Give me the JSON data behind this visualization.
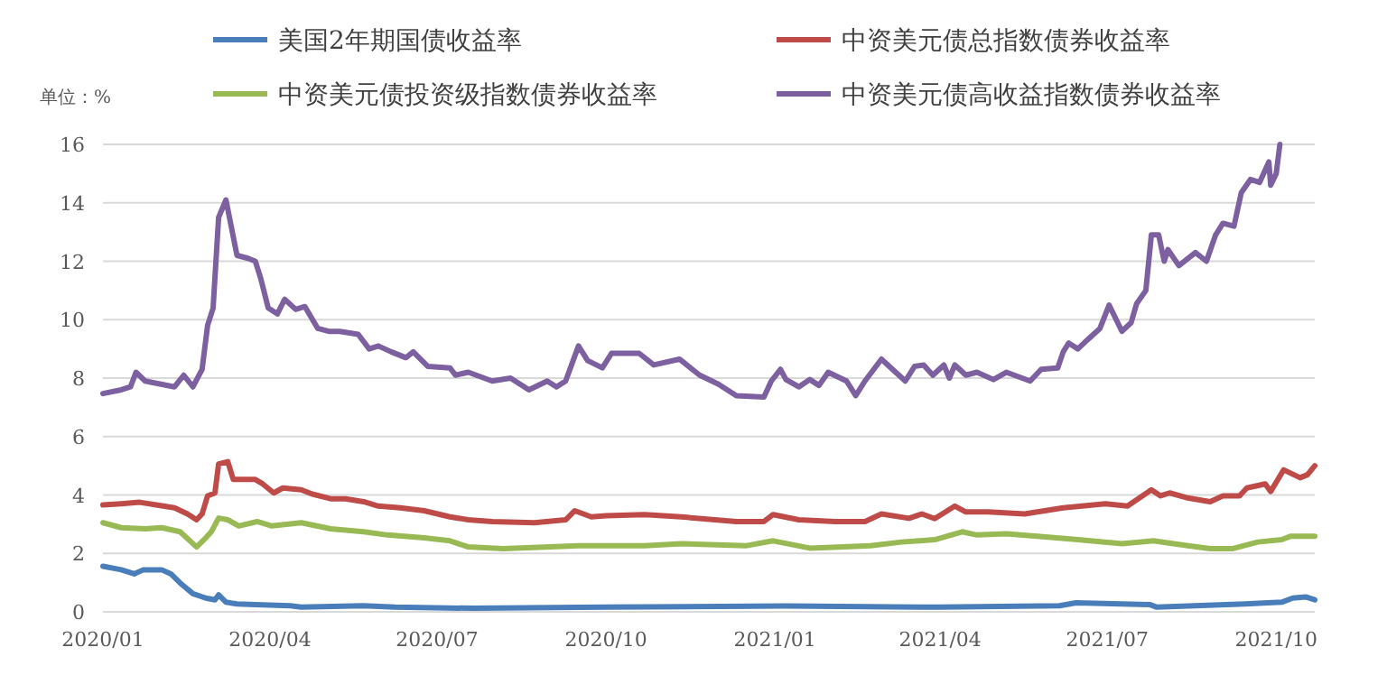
{
  "chart_data": {
    "type": "line",
    "ylabel": "单位：%",
    "legend": "top",
    "grid": "y",
    "xlim": [
      "2020-01-01",
      "2021-10-22"
    ],
    "ylim": [
      0,
      16
    ],
    "yticks": [
      0,
      2,
      4,
      6,
      8,
      10,
      12,
      14,
      16
    ],
    "xticks": [
      {
        "value": "2020-01-01",
        "label": "2020/01"
      },
      {
        "value": "2020-04-01",
        "label": "2020/04"
      },
      {
        "value": "2020-07-01",
        "label": "2020/07"
      },
      {
        "value": "2020-10-01",
        "label": "2020/10"
      },
      {
        "value": "2021-01-01",
        "label": "2021/01"
      },
      {
        "value": "2021-04-01",
        "label": "2021/04"
      },
      {
        "value": "2021-07-01",
        "label": "2021/07"
      },
      {
        "value": "2021-10-01",
        "label": "2021/10"
      }
    ],
    "series": [
      {
        "name": "美国2年期国债收益率",
        "color": "#4a7ebb",
        "x": [
          "2020-01-01",
          "2020-01-11",
          "2020-01-18",
          "2020-01-23",
          "2020-02-02",
          "2020-02-07",
          "2020-02-12",
          "2020-02-19",
          "2020-02-26",
          "2020-03-02",
          "2020-03-04",
          "2020-03-08",
          "2020-03-14",
          "2020-03-24",
          "2020-04-12",
          "2020-04-18",
          "2020-05-22",
          "2020-06-08",
          "2020-07-21",
          "2020-10-01",
          "2021-01-07",
          "2021-04-01",
          "2021-06-05",
          "2021-06-14",
          "2021-07-24",
          "2021-07-28",
          "2021-09-14",
          "2021-10-04",
          "2021-10-10",
          "2021-10-17",
          "2021-10-22"
        ],
        "values": [
          1.56,
          1.44,
          1.3,
          1.44,
          1.44,
          1.3,
          0.99,
          0.62,
          0.47,
          0.41,
          0.58,
          0.33,
          0.27,
          0.25,
          0.21,
          0.16,
          0.21,
          0.16,
          0.12,
          0.16,
          0.2,
          0.16,
          0.21,
          0.31,
          0.25,
          0.16,
          0.27,
          0.33,
          0.47,
          0.51,
          0.41
        ]
      },
      {
        "name": "中资美元债总指数债券收益率",
        "color": "#be4b48",
        "x": [
          "2020-01-01",
          "2020-01-11",
          "2020-01-21",
          "2020-01-30",
          "2020-02-09",
          "2020-02-16",
          "2020-02-21",
          "2020-02-24",
          "2020-02-27",
          "2020-03-02",
          "2020-03-04",
          "2020-03-09",
          "2020-03-12",
          "2020-03-24",
          "2020-03-28",
          "2020-04-03",
          "2020-04-08",
          "2020-04-18",
          "2020-04-24",
          "2020-05-04",
          "2020-05-12",
          "2020-05-22",
          "2020-05-30",
          "2020-06-11",
          "2020-06-24",
          "2020-07-08",
          "2020-07-18",
          "2020-07-31",
          "2020-08-23",
          "2020-09-09",
          "2020-09-14",
          "2020-09-23",
          "2020-10-01",
          "2020-10-22",
          "2020-11-11",
          "2020-12-11",
          "2020-12-26",
          "2020-12-31",
          "2021-01-14",
          "2021-02-03",
          "2021-02-19",
          "2021-02-28",
          "2021-03-15",
          "2021-03-22",
          "2021-03-29",
          "2021-04-09",
          "2021-04-15",
          "2021-04-27",
          "2021-05-17",
          "2021-06-07",
          "2021-06-30",
          "2021-07-12",
          "2021-07-25",
          "2021-07-30",
          "2021-08-04",
          "2021-08-13",
          "2021-08-26",
          "2021-09-02",
          "2021-09-11",
          "2021-09-15",
          "2021-09-25",
          "2021-09-28",
          "2021-10-05",
          "2021-10-14",
          "2021-10-18",
          "2021-10-22"
        ],
        "values": [
          3.66,
          3.7,
          3.75,
          3.66,
          3.56,
          3.35,
          3.15,
          3.35,
          3.97,
          4.07,
          5.06,
          5.14,
          4.53,
          4.53,
          4.38,
          4.07,
          4.24,
          4.18,
          4.03,
          3.87,
          3.87,
          3.77,
          3.62,
          3.56,
          3.46,
          3.25,
          3.15,
          3.09,
          3.05,
          3.15,
          3.46,
          3.25,
          3.29,
          3.33,
          3.25,
          3.09,
          3.09,
          3.33,
          3.15,
          3.09,
          3.09,
          3.35,
          3.2,
          3.35,
          3.19,
          3.62,
          3.42,
          3.42,
          3.35,
          3.56,
          3.7,
          3.62,
          4.18,
          3.97,
          4.07,
          3.91,
          3.77,
          3.97,
          3.97,
          4.24,
          4.38,
          4.12,
          4.86,
          4.59,
          4.69,
          5.0
        ]
      },
      {
        "name": "中资美元债投资级指数债券收益率",
        "color": "#98b954",
        "x": [
          "2020-01-01",
          "2020-01-11",
          "2020-01-24",
          "2020-02-02",
          "2020-02-12",
          "2020-02-21",
          "2020-02-26",
          "2020-02-29",
          "2020-03-04",
          "2020-03-09",
          "2020-03-15",
          "2020-03-25",
          "2020-04-02",
          "2020-04-18",
          "2020-05-04",
          "2020-05-22",
          "2020-06-04",
          "2020-06-24",
          "2020-07-08",
          "2020-07-18",
          "2020-08-06",
          "2020-09-16",
          "2020-10-22",
          "2020-11-11",
          "2020-12-16",
          "2020-12-31",
          "2021-01-20",
          "2021-02-22",
          "2021-03-11",
          "2021-03-29",
          "2021-04-13",
          "2021-04-21",
          "2021-05-07",
          "2021-05-24",
          "2021-06-15",
          "2021-07-09",
          "2021-07-26",
          "2021-08-14",
          "2021-08-26",
          "2021-09-07",
          "2021-09-21",
          "2021-10-04",
          "2021-10-09",
          "2021-10-22"
        ],
        "values": [
          3.05,
          2.88,
          2.84,
          2.88,
          2.74,
          2.22,
          2.53,
          2.74,
          3.21,
          3.15,
          2.94,
          3.09,
          2.94,
          3.05,
          2.84,
          2.74,
          2.63,
          2.53,
          2.43,
          2.22,
          2.16,
          2.26,
          2.26,
          2.33,
          2.26,
          2.43,
          2.18,
          2.26,
          2.39,
          2.47,
          2.74,
          2.63,
          2.67,
          2.59,
          2.47,
          2.33,
          2.43,
          2.26,
          2.16,
          2.16,
          2.39,
          2.47,
          2.59,
          2.59
        ]
      },
      {
        "name": "中资美元债高收益指数债券收益率",
        "color": "#7d60a0",
        "x": [
          "2020-01-01",
          "2020-01-11",
          "2020-01-16",
          "2020-01-19",
          "2020-01-24",
          "2020-02-01",
          "2020-02-09",
          "2020-02-14",
          "2020-02-19",
          "2020-02-24",
          "2020-02-27",
          "2020-03-01",
          "2020-03-04",
          "2020-03-08",
          "2020-03-14",
          "2020-03-20",
          "2020-03-24",
          "2020-03-27",
          "2020-03-31",
          "2020-04-05",
          "2020-04-09",
          "2020-04-15",
          "2020-04-20",
          "2020-04-27",
          "2020-05-03",
          "2020-05-09",
          "2020-05-19",
          "2020-05-25",
          "2020-05-30",
          "2020-06-06",
          "2020-06-14",
          "2020-06-18",
          "2020-06-26",
          "2020-07-08",
          "2020-07-11",
          "2020-07-18",
          "2020-07-31",
          "2020-08-10",
          "2020-08-20",
          "2020-08-30",
          "2020-09-04",
          "2020-09-09",
          "2020-09-16",
          "2020-09-21",
          "2020-09-29",
          "2020-10-04",
          "2020-10-19",
          "2020-10-27",
          "2020-11-10",
          "2020-11-21",
          "2020-12-01",
          "2020-12-11",
          "2020-12-26",
          "2020-12-30",
          "2021-01-04",
          "2021-01-07",
          "2021-01-14",
          "2021-01-20",
          "2021-01-25",
          "2021-01-30",
          "2021-02-09",
          "2021-02-14",
          "2021-02-19",
          "2021-02-28",
          "2021-03-06",
          "2021-03-13",
          "2021-03-18",
          "2021-03-23",
          "2021-03-28",
          "2021-04-03",
          "2021-04-06",
          "2021-04-09",
          "2021-04-15",
          "2021-04-21",
          "2021-04-30",
          "2021-05-07",
          "2021-05-20",
          "2021-05-26",
          "2021-06-04",
          "2021-06-07",
          "2021-06-10",
          "2021-06-15",
          "2021-06-20",
          "2021-06-27",
          "2021-07-02",
          "2021-07-09",
          "2021-07-14",
          "2021-07-17",
          "2021-07-22",
          "2021-07-25",
          "2021-07-29",
          "2021-08-01",
          "2021-08-03",
          "2021-08-09",
          "2021-08-18",
          "2021-08-24",
          "2021-08-29",
          "2021-09-02",
          "2021-09-08",
          "2021-09-12",
          "2021-09-17",
          "2021-09-22",
          "2021-09-27",
          "2021-09-28",
          "2021-10-01",
          "2021-10-03"
        ],
        "values": [
          7.47,
          7.6,
          7.7,
          8.2,
          7.9,
          7.8,
          7.7,
          8.1,
          7.7,
          8.3,
          9.8,
          10.4,
          13.5,
          14.1,
          12.2,
          12.1,
          12.0,
          11.4,
          10.4,
          10.2,
          10.7,
          10.35,
          10.45,
          9.7,
          9.6,
          9.6,
          9.5,
          9.0,
          9.1,
          8.9,
          8.7,
          8.9,
          8.4,
          8.35,
          8.1,
          8.2,
          7.9,
          8.0,
          7.6,
          7.9,
          7.7,
          7.9,
          9.1,
          8.6,
          8.35,
          8.85,
          8.85,
          8.45,
          8.65,
          8.1,
          7.8,
          7.4,
          7.35,
          7.9,
          8.3,
          7.95,
          7.7,
          7.95,
          7.75,
          8.2,
          7.9,
          7.4,
          7.9,
          8.65,
          8.3,
          7.9,
          8.4,
          8.45,
          8.1,
          8.45,
          8.0,
          8.45,
          8.1,
          8.2,
          7.95,
          8.2,
          7.9,
          8.3,
          8.35,
          8.9,
          9.2,
          9.0,
          9.3,
          9.7,
          10.5,
          9.6,
          9.9,
          10.55,
          11.0,
          12.9,
          12.9,
          12.0,
          12.4,
          11.85,
          12.3,
          12.0,
          12.9,
          13.3,
          13.2,
          14.35,
          14.8,
          14.7,
          15.4,
          14.6,
          15.0,
          16.0
        ]
      }
    ]
  }
}
